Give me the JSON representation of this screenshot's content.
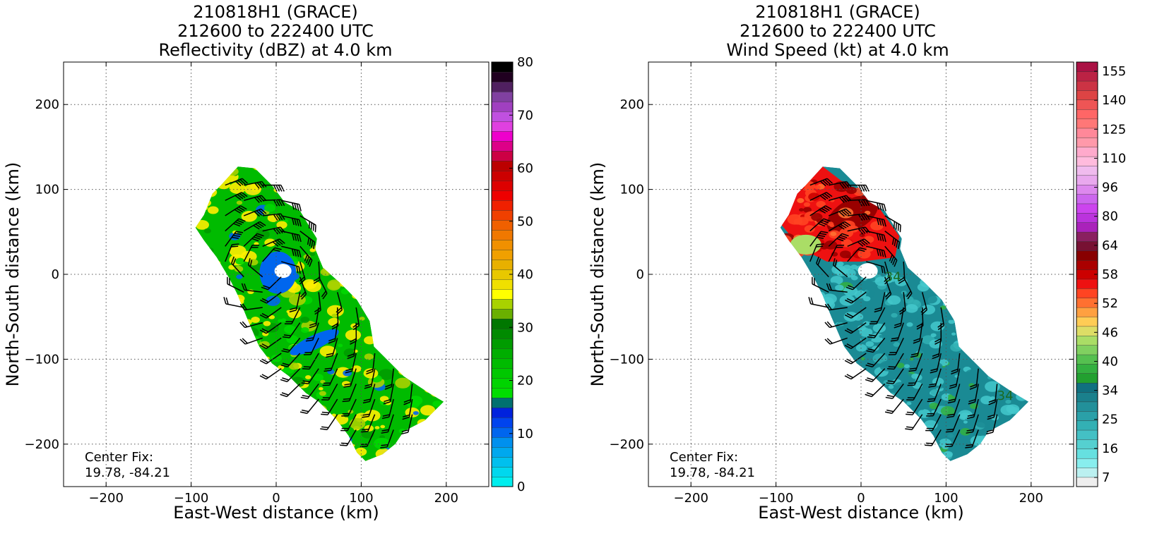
{
  "chart_data": [
    {
      "type": "heatmap",
      "title_lines": [
        "210818H1 (GRACE)",
        "212600 to 222400 UTC",
        "Reflectivity (dBZ) at 4.0 km"
      ],
      "xlabel": "East-West distance (km)",
      "ylabel": "North-South distance (km)",
      "xlim": [
        -250,
        250
      ],
      "ylim": [
        -250,
        250
      ],
      "xticks": [
        -200,
        -100,
        0,
        100,
        200
      ],
      "yticks": [
        200,
        100,
        0,
        -100,
        -200
      ],
      "grid": true,
      "annotation": [
        "Center Fix:",
        "19.78, -84.21"
      ],
      "colorbar": {
        "label": "dBZ",
        "range": [
          0,
          80
        ],
        "tick_labels": [
          80,
          70,
          60,
          50,
          40,
          30,
          20,
          10,
          0
        ],
        "colors": [
          "#00eeee",
          "#00d8ee",
          "#00c0ee",
          "#00a8ee",
          "#0090ee",
          "#0066ee",
          "#0044ee",
          "#0022dd",
          "#007070",
          "#00dd00",
          "#00d400",
          "#00c800",
          "#00bb00",
          "#00ae00",
          "#009c00",
          "#008a00",
          "#007700",
          "#6ab000",
          "#a8d200",
          "#ffff00",
          "#f0e000",
          "#e8c800",
          "#e8b000",
          "#f0a000",
          "#f09000",
          "#f07800",
          "#f06000",
          "#f04000",
          "#f02000",
          "#ee0000",
          "#dd0000",
          "#cc0000",
          "#bb0000",
          "#cc0044",
          "#dd0088",
          "#ee00cc",
          "#e040e0",
          "#c050e0",
          "#a040c0",
          "#8040a0",
          "#502060",
          "#200020",
          "#000000"
        ]
      },
      "field": {
        "description_colors": {
          "core_blue": "#0066ee",
          "band_green": "#00bb00",
          "band_yellow": "#ffee00",
          "band_lime": "#a8d200"
        }
      },
      "wind_barbs": "shown"
    },
    {
      "type": "heatmap",
      "title_lines": [
        "210818H1 (GRACE)",
        "212600 to 222400 UTC",
        "Wind Speed (kt) at 4.0 km"
      ],
      "xlabel": "East-West distance (km)",
      "ylabel": "North-South distance (km)",
      "xlim": [
        -250,
        250
      ],
      "ylim": [
        -250,
        250
      ],
      "xticks": [
        -200,
        -100,
        0,
        100,
        200
      ],
      "yticks": [
        200,
        100,
        0,
        -100,
        -200
      ],
      "grid": true,
      "annotation": [
        "Center Fix:",
        "19.78, -84.21"
      ],
      "contour_labels": [
        "34",
        "34"
      ],
      "colorbar": {
        "label": "kt",
        "tick_labels": [
          155,
          140,
          125,
          110,
          96,
          80,
          64,
          58,
          52,
          46,
          40,
          34,
          25,
          16,
          7
        ],
        "colors": [
          "#eeeeee",
          "#bbf0f0",
          "#88eeee",
          "#66e0e0",
          "#55d0d0",
          "#44c0c4",
          "#33b0b4",
          "#2aa0a8",
          "#22909a",
          "#1a808c",
          "#107080",
          "#22a030",
          "#33b040",
          "#55c050",
          "#80d060",
          "#aadd66",
          "#dddd66",
          "#ffcc55",
          "#ffa040",
          "#ff7030",
          "#ff4422",
          "#ee1111",
          "#cc0000",
          "#aa0000",
          "#880000",
          "#771133",
          "#8a2060",
          "#aa22bb",
          "#bb33dd",
          "#cc44ee",
          "#cc66ee",
          "#dd88ee",
          "#e9a8ee",
          "#f0bbee",
          "#ffbbdd",
          "#ffaacc",
          "#ff99aa",
          "#ff8899",
          "#ff7777",
          "#ff6666",
          "#ee5555",
          "#dd4444",
          "#cc3344",
          "#bb2244",
          "#aa1144"
        ]
      },
      "field": {
        "description_colors": {
          "teal": "#1a8a94",
          "cyan": "#44c8cc",
          "red": "#ee1111",
          "darkred": "#990000",
          "green": "#33b040"
        }
      },
      "wind_barbs": "shown"
    }
  ]
}
